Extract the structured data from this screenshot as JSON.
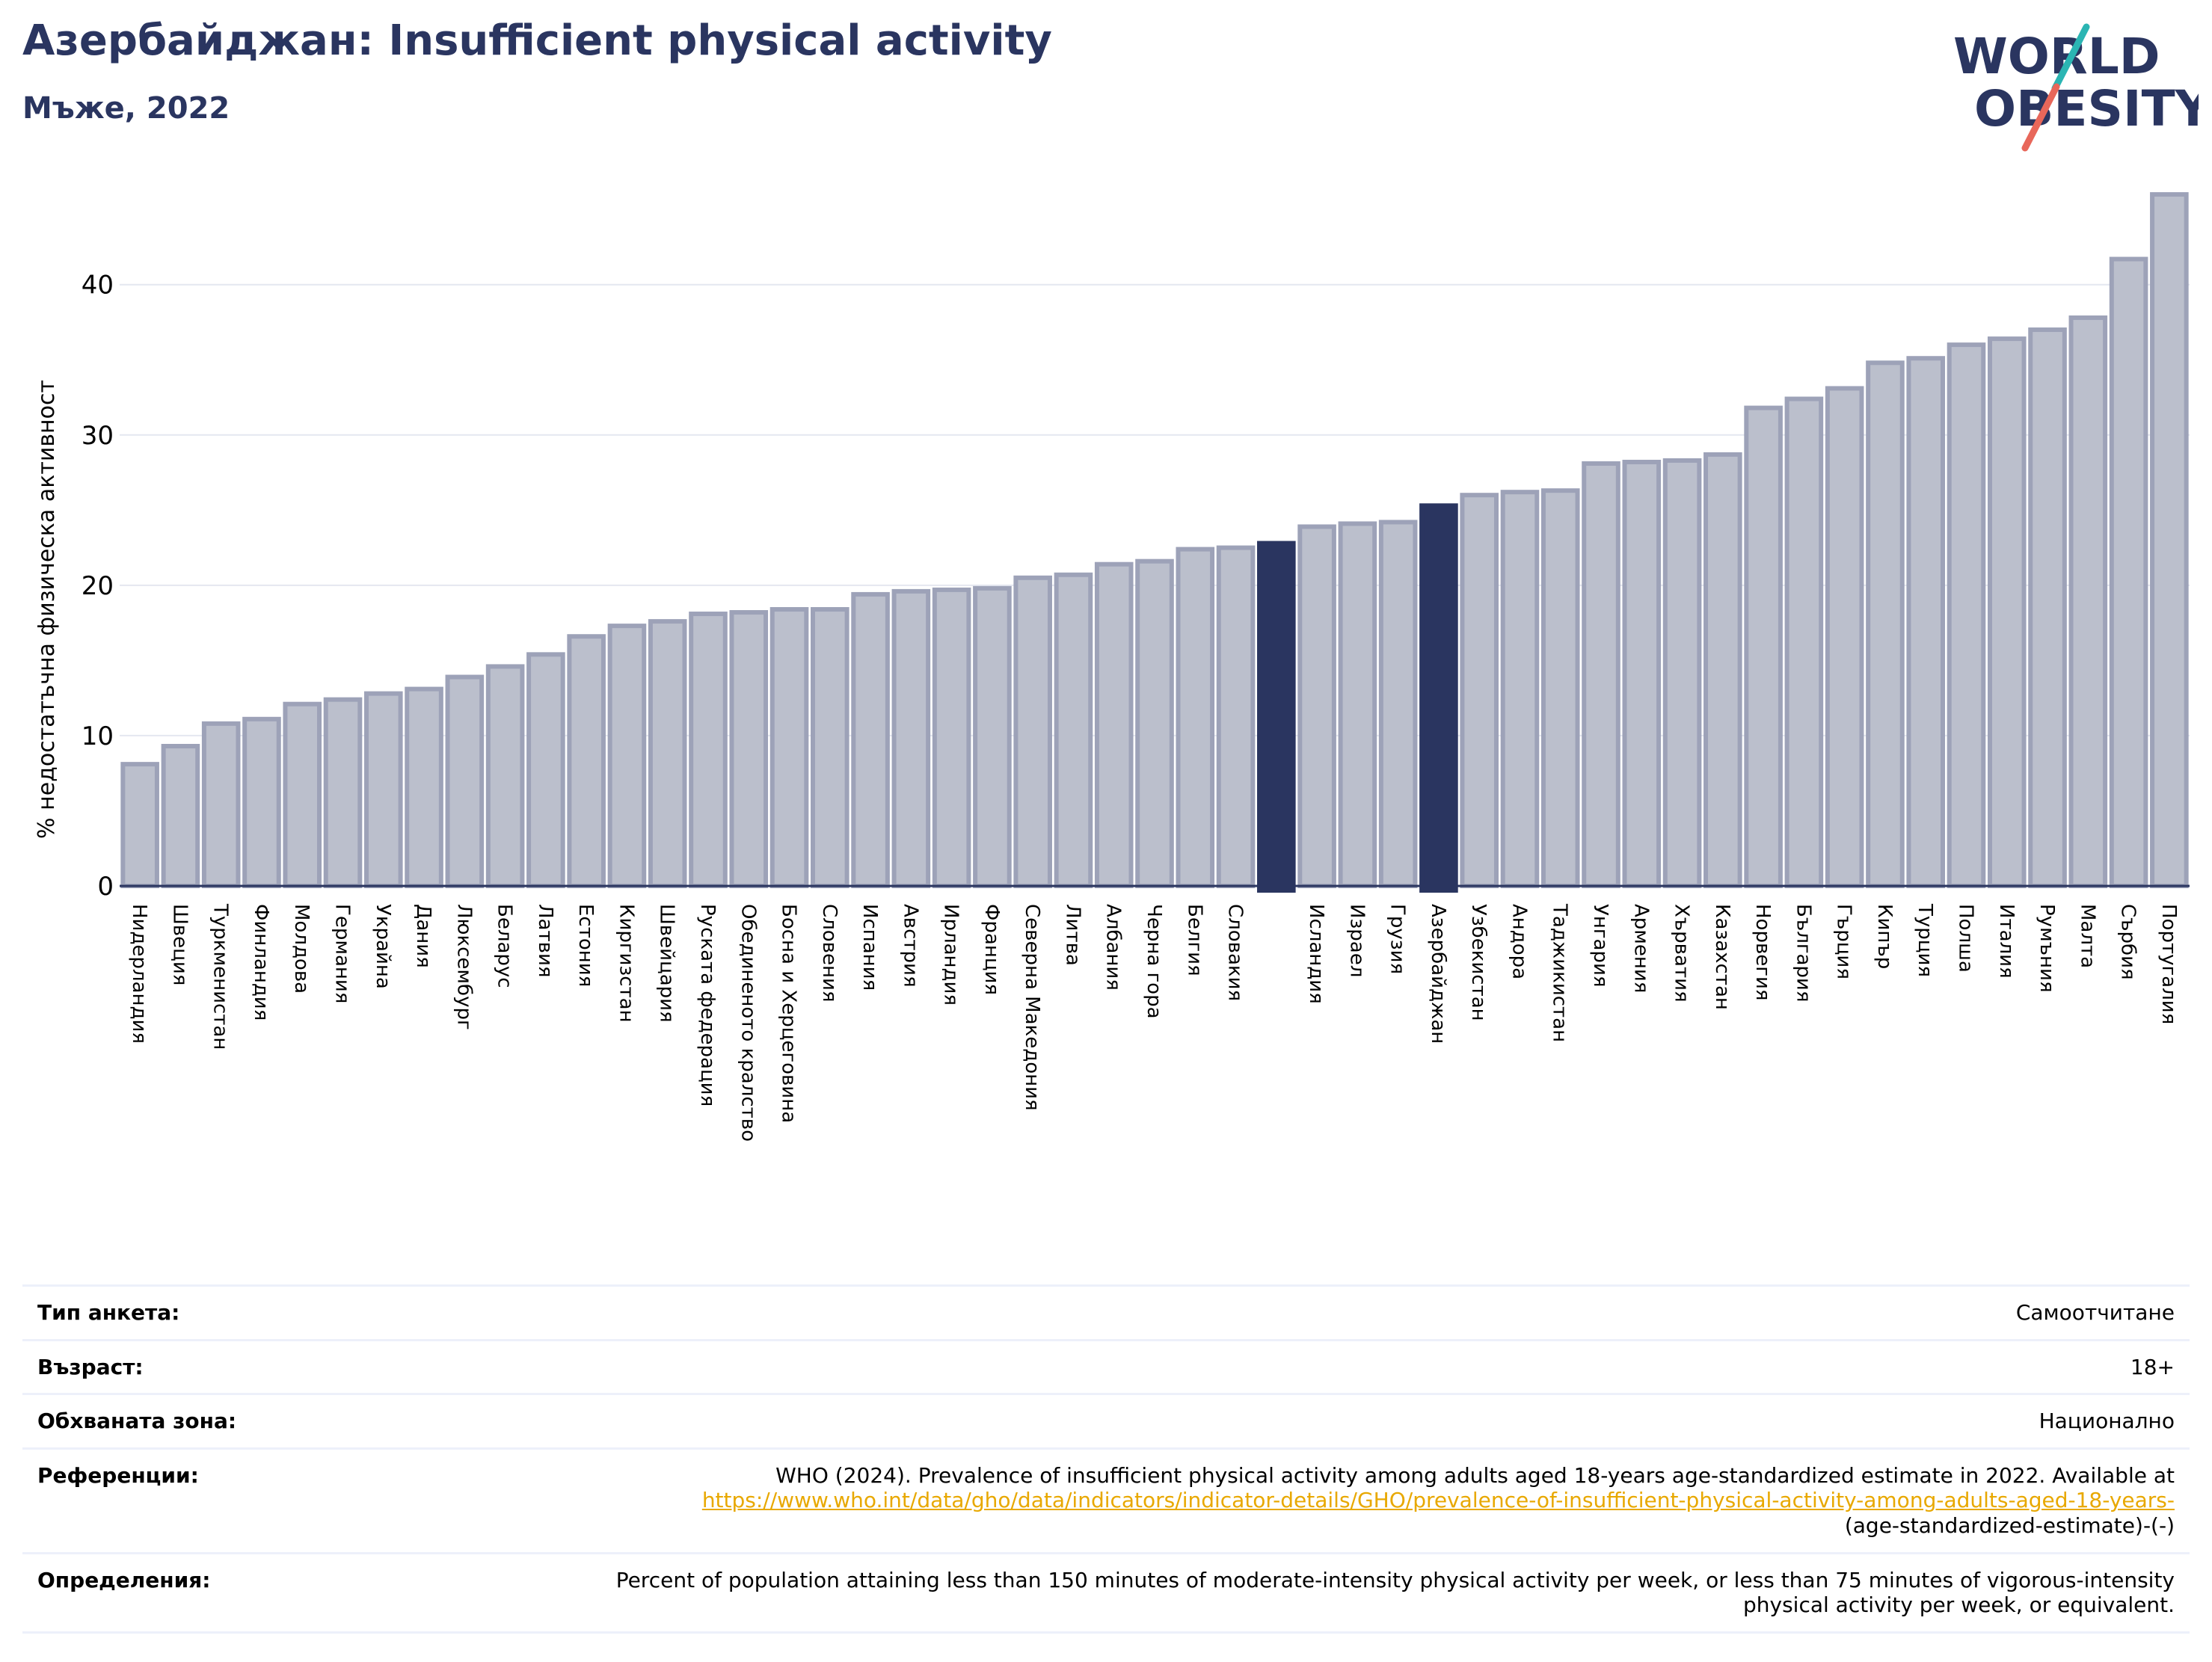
{
  "header": {
    "title": "Азербайджан: Insufficient physical activity",
    "subtitle": "Мъже, 2022"
  },
  "logo": {
    "line1": "WORLD",
    "line2": "OBESITY",
    "accent_teal": "#2bb5b3",
    "accent_coral": "#e8675a",
    "text_color": "#2a3560"
  },
  "colors": {
    "bar_default": "#bbbfcc",
    "bar_edge": "#9da2b8",
    "bar_highlight": "#2a3560",
    "grid": "#e4e7f0",
    "axis": "#2a3560"
  },
  "chart_data": {
    "type": "bar",
    "title": "",
    "xlabel": "",
    "ylabel": "% недостатъчна физическа активност",
    "ylim": [
      0,
      46.5
    ],
    "yticks": [
      0,
      10,
      20,
      30,
      40
    ],
    "grid": true,
    "categories": [
      "Нидерландия",
      "Швеция",
      "Туркменистан",
      "Финландия",
      "Молдова",
      "Германия",
      "Украйна",
      "Дания",
      "Люксембург",
      "Беларус",
      "Латвия",
      "Естония",
      "Киргизстан",
      "Швейцария",
      "Руската федерация",
      "Обединеното кралство",
      "Босна и Херцеговина",
      "Словения",
      "Испания",
      "Австрия",
      "Ирландия",
      "Франция",
      "Северна Македония",
      "Литва",
      "Албания",
      "Черна гора",
      "Белгия",
      "Словакия",
      "",
      "Исландия",
      "Израел",
      "Грузия",
      "Азербайджан",
      "Узбекистан",
      "Андора",
      "Таджикистан",
      "Унгария",
      "Армения",
      "Хърватия",
      "Казахстан",
      "Норвегия",
      "България",
      "Гърция",
      "Кипър",
      "Турция",
      "Полша",
      "Италия",
      "Румъния",
      "Малта",
      "Сърбия",
      "Португалия"
    ],
    "values": [
      8.1,
      9.3,
      10.8,
      11.1,
      12.1,
      12.4,
      12.8,
      13.1,
      13.9,
      14.6,
      15.4,
      16.6,
      17.3,
      17.6,
      18.1,
      18.2,
      18.4,
      18.4,
      19.4,
      19.6,
      19.7,
      19.8,
      20.5,
      20.7,
      21.4,
      21.6,
      22.4,
      22.5,
      22.8,
      23.9,
      24.1,
      24.2,
      25.3,
      26.0,
      26.2,
      26.3,
      28.1,
      28.2,
      28.3,
      28.7,
      31.8,
      32.4,
      33.1,
      34.8,
      35.1,
      36.0,
      36.4,
      37.0,
      37.8,
      41.7,
      46.0
    ],
    "highlight_indices": [
      28,
      32
    ]
  },
  "info": {
    "rows": [
      {
        "label": "Тип анкета:",
        "value": "Самоотчитане"
      },
      {
        "label": "Възраст:",
        "value": "18+"
      },
      {
        "label": "Обхваната зона:",
        "value": "Национално"
      },
      {
        "label": "Референции:",
        "value": "WHO (2024). Prevalence of insufficient physical activity among adults aged 18-years age-standardized estimate in 2022. Available at",
        "link": "https://www.who.int/data/gho/data/indicators/indicator-details/GHO/prevalence-of-insufficient-physical-activity-among-adults-aged-18-years-",
        "value_tail": "(age-standardized-estimate)-(-)"
      },
      {
        "label": "Определения:",
        "value": "Percent of population attaining less than 150 minutes of moderate-intensity physical activity per week, or less than 75 minutes of vigorous-intensity physical activity per week, or equivalent."
      }
    ]
  }
}
